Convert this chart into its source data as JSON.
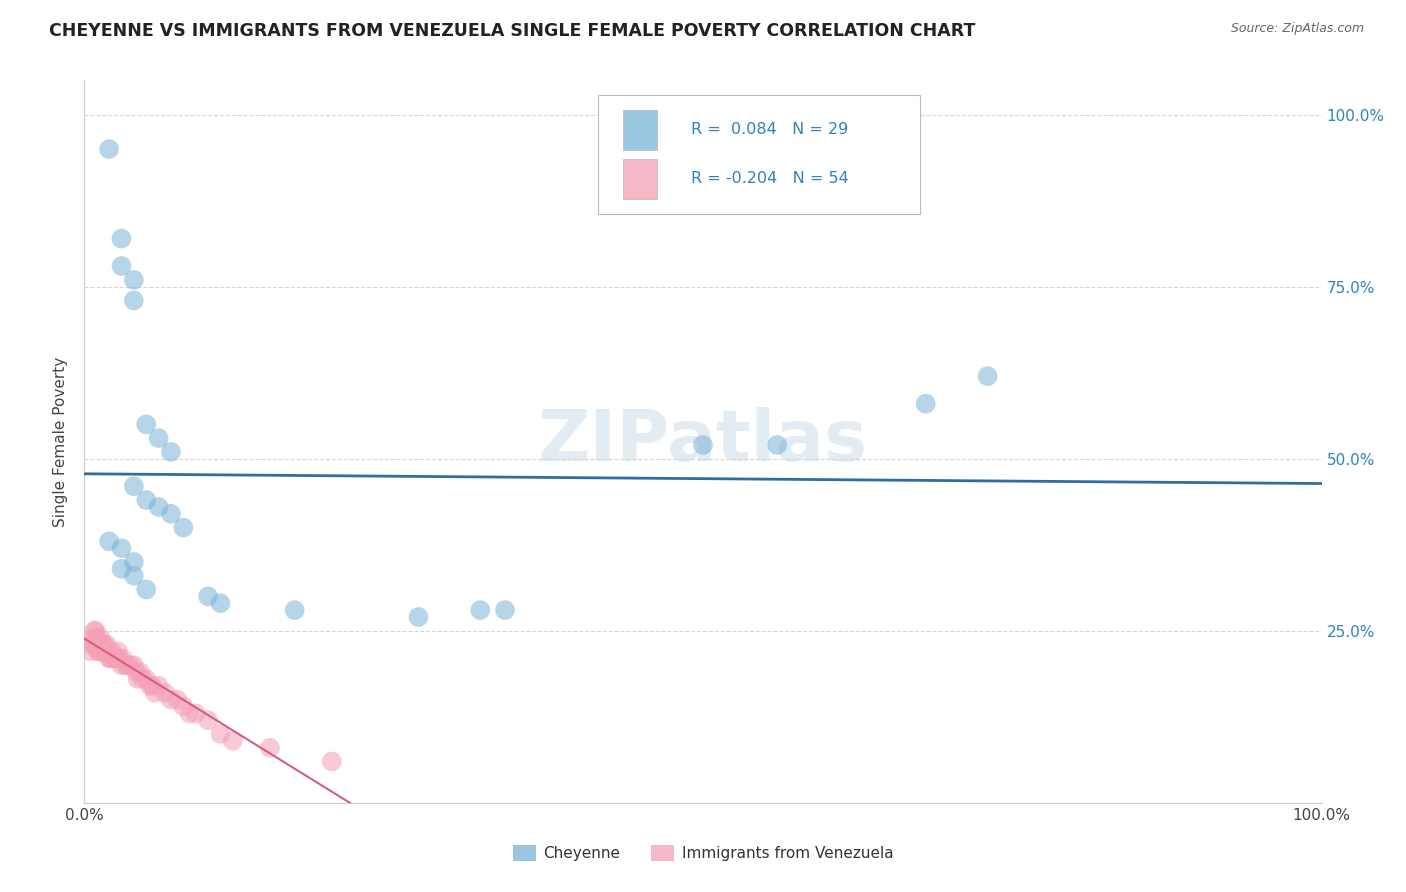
{
  "title": "CHEYENNE VS IMMIGRANTS FROM VENEZUELA SINGLE FEMALE POVERTY CORRELATION CHART",
  "source": "Source: ZipAtlas.com",
  "ylabel": "Single Female Poverty",
  "watermark": "ZIPatlas",
  "legend_labels": [
    "Cheyenne",
    "Immigrants from Venezuela"
  ],
  "blue_color": "#7ab3d8",
  "pink_color": "#f4a0b5",
  "blue_line_color": "#2e6da4",
  "pink_line_color": "#d45f82",
  "legend_text_color": "#3182bd",
  "cheyenne_x": [
    0.02,
    0.03,
    0.03,
    0.04,
    0.04,
    0.05,
    0.06,
    0.07,
    0.04,
    0.05,
    0.06,
    0.07,
    0.08,
    0.02,
    0.03,
    0.04,
    0.03,
    0.04,
    0.05,
    0.1,
    0.11,
    0.17,
    0.27,
    0.32,
    0.34,
    0.5,
    0.56,
    0.68,
    0.73
  ],
  "cheyenne_y": [
    0.95,
    0.82,
    0.78,
    0.76,
    0.73,
    0.55,
    0.53,
    0.51,
    0.46,
    0.44,
    0.43,
    0.42,
    0.4,
    0.38,
    0.37,
    0.35,
    0.34,
    0.33,
    0.31,
    0.3,
    0.29,
    0.28,
    0.27,
    0.28,
    0.28,
    0.52,
    0.52,
    0.58,
    0.62
  ],
  "venezuela_x": [
    0.005,
    0.006,
    0.007,
    0.008,
    0.008,
    0.009,
    0.01,
    0.01,
    0.011,
    0.012,
    0.012,
    0.013,
    0.014,
    0.015,
    0.015,
    0.016,
    0.017,
    0.018,
    0.018,
    0.019,
    0.02,
    0.021,
    0.022,
    0.023,
    0.025,
    0.026,
    0.027,
    0.028,
    0.03,
    0.031,
    0.033,
    0.035,
    0.037,
    0.04,
    0.042,
    0.043,
    0.045,
    0.047,
    0.05,
    0.053,
    0.055,
    0.057,
    0.06,
    0.065,
    0.07,
    0.075,
    0.08,
    0.085,
    0.09,
    0.1,
    0.11,
    0.12,
    0.15,
    0.2
  ],
  "venezuela_y": [
    0.22,
    0.23,
    0.23,
    0.24,
    0.25,
    0.25,
    0.23,
    0.24,
    0.22,
    0.22,
    0.23,
    0.24,
    0.23,
    0.22,
    0.22,
    0.23,
    0.22,
    0.23,
    0.22,
    0.22,
    0.21,
    0.21,
    0.22,
    0.21,
    0.21,
    0.21,
    0.22,
    0.21,
    0.2,
    0.21,
    0.2,
    0.2,
    0.2,
    0.2,
    0.19,
    0.18,
    0.19,
    0.18,
    0.18,
    0.17,
    0.17,
    0.16,
    0.17,
    0.16,
    0.15,
    0.15,
    0.14,
    0.13,
    0.13,
    0.12,
    0.1,
    0.09,
    0.08,
    0.06
  ],
  "xlim": [
    0.0,
    1.0
  ],
  "ylim": [
    0.0,
    1.05
  ],
  "grid_color": "#cccccc",
  "background_color": "#ffffff",
  "blue_R": "R =  0.084",
  "blue_N": "N = 29",
  "pink_R": "R = -0.204",
  "pink_N": "N = 54"
}
